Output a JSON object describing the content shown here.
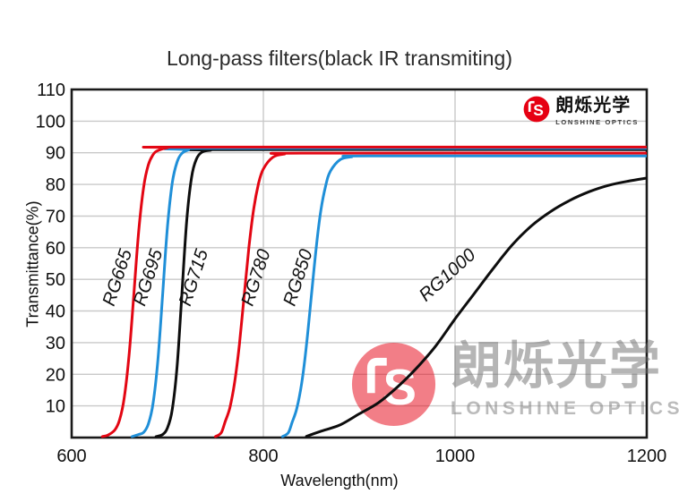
{
  "brand": {
    "monogram": "S",
    "name_cn": "朗烁光学",
    "name_en": "LONSHINE OPTICS",
    "logo_red": "#e60012"
  },
  "chart_data": {
    "type": "line",
    "title": "Long-pass filters(black IR transmiting)",
    "xlabel": "Wavelength(nm)",
    "ylabel": "Transmittance(%)",
    "xlim": [
      600,
      1200
    ],
    "ylim": [
      0,
      110
    ],
    "x_ticks": [
      600,
      800,
      1000,
      1200
    ],
    "y_ticks": [
      10,
      20,
      30,
      40,
      50,
      60,
      70,
      80,
      90,
      100,
      110
    ],
    "x_gridlines": [
      800,
      1000
    ],
    "y_gridlines": [
      10,
      20,
      30,
      40,
      50,
      60,
      70,
      80,
      90,
      100
    ],
    "grid": true,
    "legend_position": "inline-curve-labels",
    "grid_color": "#c9c9c9",
    "frame_color": "#1a1a1a",
    "series": [
      {
        "name": "RG665",
        "color": "#e30613",
        "cut_on_nm": 665,
        "plateau_pct": 91.8,
        "label": {
          "x": 653.5,
          "y": 50,
          "angle": -72
        },
        "points": [
          [
            632,
            0.3
          ],
          [
            638,
            0.8
          ],
          [
            645,
            2.4
          ],
          [
            650,
            5.6
          ],
          [
            655,
            12.8
          ],
          [
            660,
            26.4
          ],
          [
            665,
            45.9
          ],
          [
            670,
            65.4
          ],
          [
            675,
            79.0
          ],
          [
            680,
            86.2
          ],
          [
            685,
            89.4
          ],
          [
            690,
            90.7
          ],
          [
            700,
            91.6
          ],
          [
            715,
            91.8
          ],
          [
            1200,
            91.8
          ]
        ]
      },
      {
        "name": "RG695",
        "color": "#1f8fd8",
        "cut_on_nm": 695,
        "plateau_pct": 91.4,
        "label": {
          "x": 685.5,
          "y": 50,
          "angle": -72
        },
        "points": [
          [
            663,
            0.3
          ],
          [
            670,
            1.0
          ],
          [
            675,
            1.6
          ],
          [
            680,
            4.3
          ],
          [
            685,
            10.9
          ],
          [
            690,
            24.6
          ],
          [
            695,
            45.7
          ],
          [
            700,
            66.8
          ],
          [
            705,
            80.5
          ],
          [
            710,
            87.1
          ],
          [
            715,
            89.8
          ],
          [
            722,
            90.9
          ],
          [
            735,
            91.4
          ],
          [
            1200,
            91.4
          ]
        ]
      },
      {
        "name": "RG715",
        "color": "#0d0d0d",
        "cut_on_nm": 715,
        "plateau_pct": 91.0,
        "label": {
          "x": 733,
          "y": 50,
          "angle": -72
        },
        "points": [
          [
            688,
            0.3
          ],
          [
            695,
            1.0
          ],
          [
            700,
            3.1
          ],
          [
            705,
            8.9
          ],
          [
            710,
            22.5
          ],
          [
            715,
            45.5
          ],
          [
            720,
            68.4
          ],
          [
            725,
            82.1
          ],
          [
            730,
            87.9
          ],
          [
            736,
            90.2
          ],
          [
            745,
            90.8
          ],
          [
            758,
            91.0
          ],
          [
            1200,
            91.0
          ]
        ]
      },
      {
        "name": "RG780",
        "color": "#e30613",
        "cut_on_nm": 780,
        "plateau_pct": 89.9,
        "label": {
          "x": 798,
          "y": 50,
          "angle": -72
        },
        "points": [
          [
            750,
            0.3
          ],
          [
            756,
            1.5
          ],
          [
            760,
            4.9
          ],
          [
            765,
            9.4
          ],
          [
            770,
            17.4
          ],
          [
            775,
            29.5
          ],
          [
            780,
            44.9
          ],
          [
            785,
            60.2
          ],
          [
            790,
            72.4
          ],
          [
            795,
            80.3
          ],
          [
            800,
            84.9
          ],
          [
            810,
            88.6
          ],
          [
            822,
            89.6
          ],
          [
            840,
            89.9
          ],
          [
            1200,
            89.9
          ]
        ]
      },
      {
        "name": "RG850",
        "color": "#1f8fd8",
        "cut_on_nm": 850,
        "plateau_pct": 89.0,
        "label": {
          "x": 842,
          "y": 50,
          "angle": -72
        },
        "points": [
          [
            820,
            0.3
          ],
          [
            826,
            1.5
          ],
          [
            830,
            4.8
          ],
          [
            835,
            9.3
          ],
          [
            840,
            17.2
          ],
          [
            845,
            29.2
          ],
          [
            850,
            44.5
          ],
          [
            855,
            59.7
          ],
          [
            860,
            71.8
          ],
          [
            865,
            79.6
          ],
          [
            870,
            84.2
          ],
          [
            880,
            87.8
          ],
          [
            892,
            88.7
          ],
          [
            910,
            89.0
          ],
          [
            1200,
            89.0
          ]
        ]
      },
      {
        "name": "RG1000",
        "color": "#0d0d0d",
        "cut_on_nm": 1000,
        "plateau_pct": 82.0,
        "label": {
          "x": 996,
          "y": 50,
          "angle": -42
        },
        "points": [
          [
            845,
            0.4
          ],
          [
            860,
            2.0
          ],
          [
            880,
            4.0
          ],
          [
            900,
            7.5
          ],
          [
            920,
            11.0
          ],
          [
            940,
            16.0
          ],
          [
            960,
            22.0
          ],
          [
            980,
            29.0
          ],
          [
            1000,
            37.5
          ],
          [
            1020,
            45.5
          ],
          [
            1040,
            53.5
          ],
          [
            1060,
            61.0
          ],
          [
            1080,
            67.0
          ],
          [
            1100,
            71.5
          ],
          [
            1120,
            75.0
          ],
          [
            1140,
            77.7
          ],
          [
            1160,
            79.7
          ],
          [
            1180,
            81.0
          ],
          [
            1200,
            82.0
          ]
        ]
      }
    ]
  }
}
